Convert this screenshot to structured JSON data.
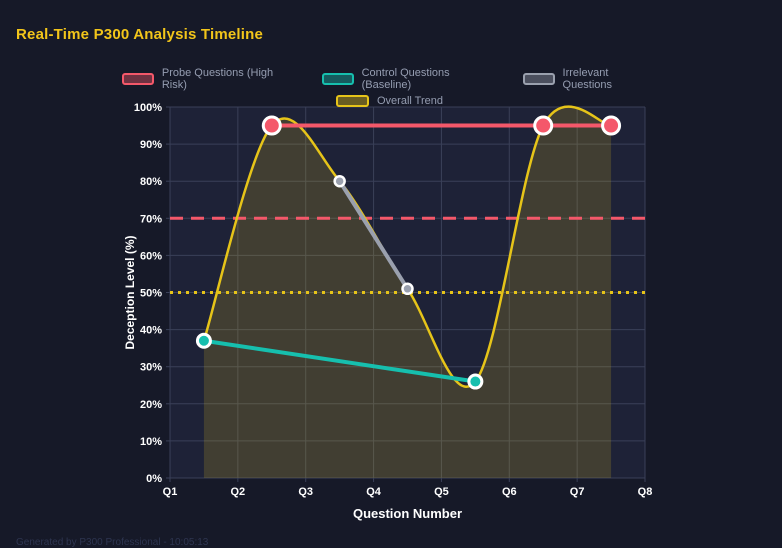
{
  "page": {
    "title": "Real-Time P300 Analysis Timeline",
    "footer": "Generated by P300 Professional - 10:05:13"
  },
  "colors": {
    "background": "#161928",
    "plot_background": "#1e2237",
    "grid": "#3a4058",
    "tick_text": "#ffffff",
    "legend_text": "#959db1",
    "title_text": "#f2c51a",
    "probe": "#f4586a",
    "control": "#16bfae",
    "irrelevant": "#9aa0ae",
    "trend": "#e6c419"
  },
  "chart_data": {
    "type": "line",
    "xlabel": "Question Number",
    "ylabel": "Deception Level (%)",
    "x_range": [
      1,
      8
    ],
    "x_ticks": [
      "Q1",
      "Q2",
      "Q3",
      "Q4",
      "Q5",
      "Q6",
      "Q7",
      "Q8"
    ],
    "ylim": [
      0,
      100
    ],
    "y_tick_step": 10,
    "y_tick_labels": [
      "0%",
      "10%",
      "20%",
      "30%",
      "40%",
      "50%",
      "60%",
      "70%",
      "80%",
      "90%",
      "100%"
    ],
    "grid": true,
    "legend_position": "top",
    "series": [
      {
        "name": "Probe Questions (High Risk)",
        "color": "#f4586a",
        "x": [
          2.5,
          6.5,
          7.5
        ],
        "values": [
          95,
          95,
          95
        ],
        "line_width": 4,
        "point_radius": 8.5,
        "point_stroke": 3
      },
      {
        "name": "Control Questions (Baseline)",
        "color": "#16bfae",
        "x": [
          1.5,
          5.5
        ],
        "values": [
          37,
          26
        ],
        "line_width": 4,
        "point_radius": 6.5,
        "point_stroke": 3
      },
      {
        "name": "Irrelevant Questions",
        "color": "#9aa0ae",
        "x": [
          3.5,
          4.5
        ],
        "values": [
          80,
          51
        ],
        "line_width": 4,
        "point_radius": 5,
        "point_stroke": 2.5
      },
      {
        "name": "Overall Trend",
        "color": "#e6c419",
        "x": [
          1.5,
          2.5,
          3.5,
          4.5,
          5.5,
          6.5,
          7.5
        ],
        "values": [
          37,
          95,
          80,
          51,
          26,
          95,
          95
        ],
        "line_width": 2.5,
        "point_radius": 0,
        "smooth": true,
        "fill": true,
        "fill_opacity": 0.18
      }
    ],
    "reference_lines": [
      {
        "name": "high-risk-threshold",
        "value": 70,
        "color": "#f4586a",
        "style": "dashed"
      },
      {
        "name": "baseline-threshold",
        "value": 50,
        "color": "#e6c419",
        "style": "dotted"
      }
    ]
  }
}
